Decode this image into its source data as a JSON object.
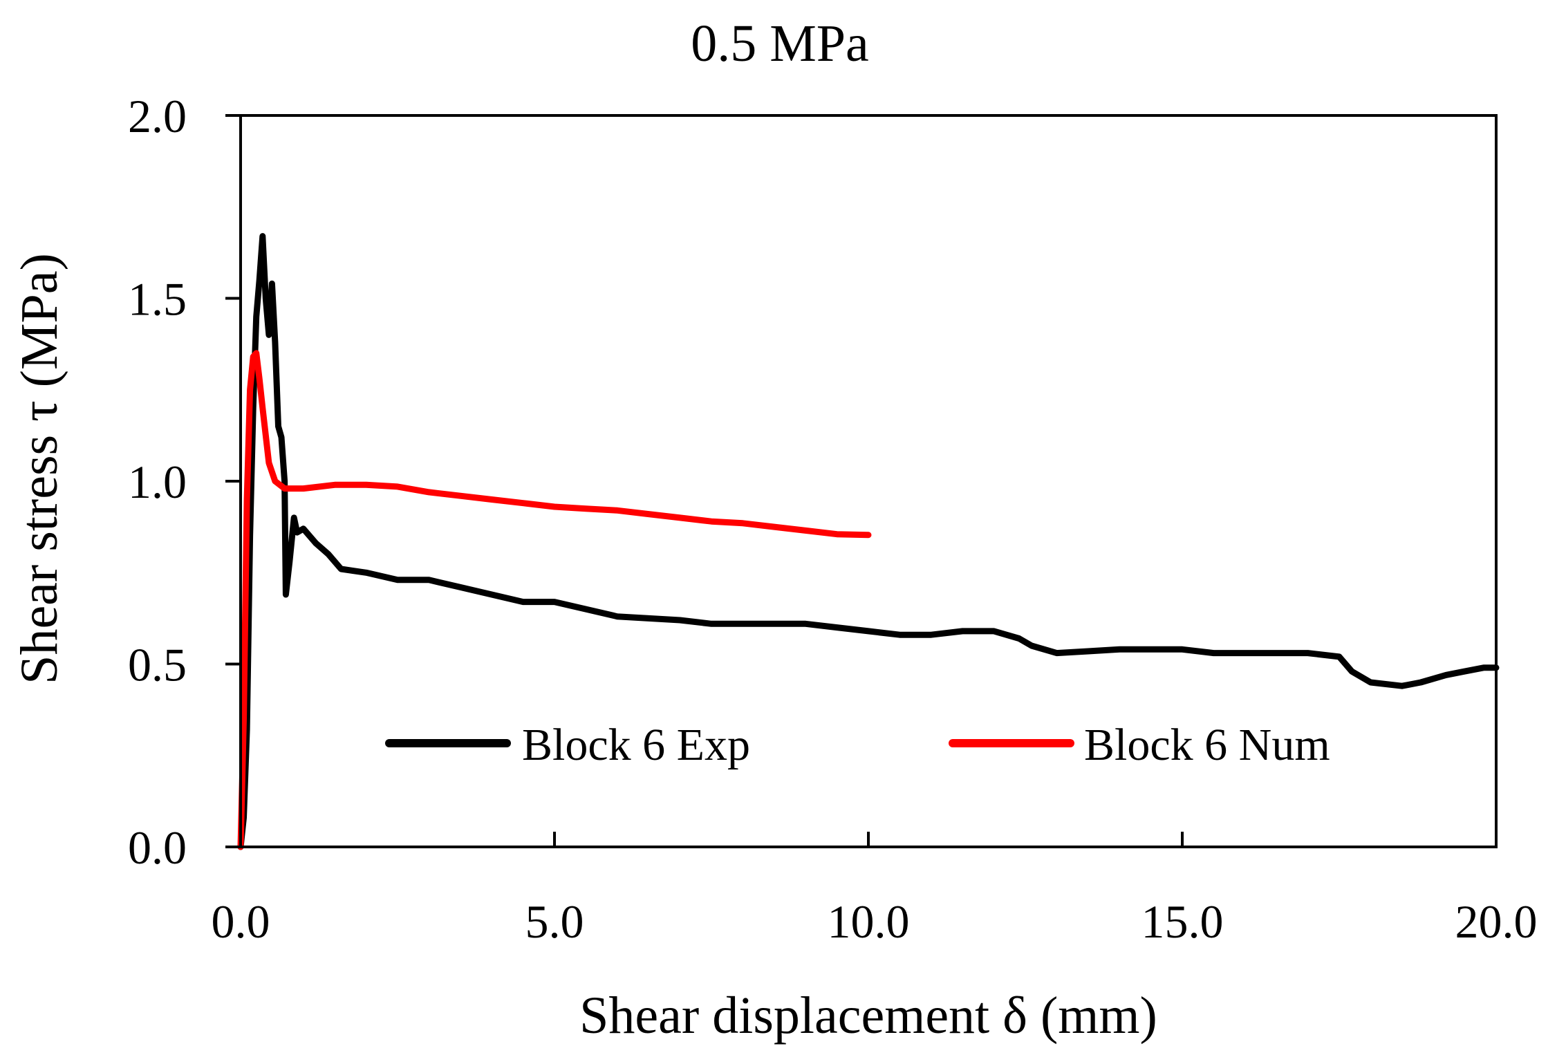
{
  "chart_data": {
    "type": "line",
    "title": "0.5 MPa",
    "xlabel": "Shear displacement δ (mm)",
    "ylabel": "Shear stress τ (MPa)",
    "xlim": [
      0,
      20
    ],
    "ylim": [
      0,
      2
    ],
    "xticks": [
      0,
      5,
      10,
      15,
      20
    ],
    "yticks": [
      0,
      0.5,
      1.0,
      1.5,
      2.0
    ],
    "xtick_labels": [
      "0.0",
      "5.0",
      "10.0",
      "15.0",
      "20.0"
    ],
    "ytick_labels": [
      "0.0",
      "0.5",
      "1.0",
      "1.5",
      "2.0"
    ],
    "grid": false,
    "legend_position": "bottom",
    "series": [
      {
        "name": "Block 6 Exp",
        "color": "#000000",
        "points": [
          [
            0.0,
            0.0
          ],
          [
            0.05,
            0.08
          ],
          [
            0.1,
            0.32
          ],
          [
            0.15,
            0.85
          ],
          [
            0.2,
            1.2
          ],
          [
            0.25,
            1.45
          ],
          [
            0.3,
            1.55
          ],
          [
            0.35,
            1.67
          ],
          [
            0.4,
            1.5
          ],
          [
            0.45,
            1.4
          ],
          [
            0.5,
            1.54
          ],
          [
            0.55,
            1.38
          ],
          [
            0.6,
            1.15
          ],
          [
            0.65,
            1.12
          ],
          [
            0.7,
            1.0
          ],
          [
            0.72,
            0.69
          ],
          [
            0.78,
            0.78
          ],
          [
            0.85,
            0.9
          ],
          [
            0.9,
            0.86
          ],
          [
            1.0,
            0.87
          ],
          [
            1.2,
            0.83
          ],
          [
            1.4,
            0.8
          ],
          [
            1.6,
            0.76
          ],
          [
            2.0,
            0.75
          ],
          [
            2.5,
            0.73
          ],
          [
            3.0,
            0.73
          ],
          [
            3.5,
            0.71
          ],
          [
            4.0,
            0.69
          ],
          [
            4.5,
            0.67
          ],
          [
            5.0,
            0.67
          ],
          [
            5.5,
            0.65
          ],
          [
            6.0,
            0.63
          ],
          [
            7.0,
            0.62
          ],
          [
            7.5,
            0.61
          ],
          [
            8.0,
            0.61
          ],
          [
            9.0,
            0.61
          ],
          [
            9.5,
            0.6
          ],
          [
            10.0,
            0.59
          ],
          [
            10.5,
            0.58
          ],
          [
            11.0,
            0.58
          ],
          [
            11.5,
            0.59
          ],
          [
            12.0,
            0.59
          ],
          [
            12.4,
            0.57
          ],
          [
            12.6,
            0.55
          ],
          [
            13.0,
            0.53
          ],
          [
            13.5,
            0.535
          ],
          [
            14.0,
            0.54
          ],
          [
            15.0,
            0.54
          ],
          [
            15.5,
            0.53
          ],
          [
            16.0,
            0.53
          ],
          [
            17.0,
            0.53
          ],
          [
            17.5,
            0.52
          ],
          [
            17.7,
            0.48
          ],
          [
            18.0,
            0.45
          ],
          [
            18.5,
            0.44
          ],
          [
            18.8,
            0.45
          ],
          [
            19.2,
            0.47
          ],
          [
            19.5,
            0.48
          ],
          [
            19.8,
            0.49
          ],
          [
            20.0,
            0.49
          ]
        ]
      },
      {
        "name": "Block 6 Num",
        "color": "#ff0000",
        "points": [
          [
            0.0,
            0.0
          ],
          [
            0.05,
            0.35
          ],
          [
            0.1,
            0.95
          ],
          [
            0.15,
            1.25
          ],
          [
            0.2,
            1.34
          ],
          [
            0.25,
            1.35
          ],
          [
            0.3,
            1.28
          ],
          [
            0.35,
            1.2
          ],
          [
            0.45,
            1.05
          ],
          [
            0.55,
            1.0
          ],
          [
            0.7,
            0.98
          ],
          [
            1.0,
            0.98
          ],
          [
            1.5,
            0.99
          ],
          [
            2.0,
            0.99
          ],
          [
            2.5,
            0.985
          ],
          [
            3.0,
            0.97
          ],
          [
            3.5,
            0.96
          ],
          [
            4.0,
            0.95
          ],
          [
            4.5,
            0.94
          ],
          [
            5.0,
            0.93
          ],
          [
            5.5,
            0.925
          ],
          [
            6.0,
            0.92
          ],
          [
            6.5,
            0.91
          ],
          [
            7.0,
            0.9
          ],
          [
            7.5,
            0.89
          ],
          [
            8.0,
            0.885
          ],
          [
            8.5,
            0.875
          ],
          [
            9.0,
            0.865
          ],
          [
            9.5,
            0.855
          ],
          [
            10.0,
            0.853
          ]
        ]
      }
    ]
  }
}
